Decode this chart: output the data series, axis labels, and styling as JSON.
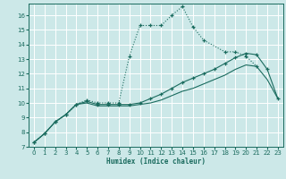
{
  "xlabel": "Humidex (Indice chaleur)",
  "bg_color": "#cce8e8",
  "grid_color": "#ffffff",
  "line_color": "#1a6b5e",
  "xlim": [
    -0.5,
    23.5
  ],
  "ylim": [
    7,
    16.8
  ],
  "xticks": [
    0,
    1,
    2,
    3,
    4,
    5,
    6,
    7,
    8,
    9,
    10,
    11,
    12,
    13,
    14,
    15,
    16,
    17,
    18,
    19,
    20,
    21,
    22,
    23
  ],
  "yticks": [
    7,
    8,
    9,
    10,
    11,
    12,
    13,
    14,
    15,
    16
  ],
  "curve1_x": [
    0,
    1,
    2,
    3,
    4,
    5,
    6,
    7,
    8,
    9,
    10,
    11,
    12,
    13,
    14,
    15,
    16,
    18,
    19,
    20,
    21
  ],
  "curve1_y": [
    7.3,
    7.9,
    8.7,
    9.2,
    9.9,
    10.2,
    10.0,
    10.0,
    10.0,
    13.2,
    15.3,
    15.3,
    15.3,
    16.0,
    16.6,
    15.2,
    14.3,
    13.5,
    13.5,
    13.2,
    12.5
  ],
  "curve2_x": [
    0,
    1,
    2,
    3,
    4,
    5,
    6,
    7,
    8,
    9,
    10,
    11,
    12,
    13,
    14,
    15,
    16,
    17,
    18,
    19,
    20,
    21,
    22,
    23
  ],
  "curve2_y": [
    7.3,
    7.9,
    8.7,
    9.2,
    9.9,
    10.1,
    9.9,
    9.9,
    9.9,
    9.9,
    10.0,
    10.3,
    10.6,
    11.0,
    11.4,
    11.7,
    12.0,
    12.3,
    12.7,
    13.1,
    13.4,
    13.3,
    12.3,
    10.3
  ],
  "curve3_x": [
    0,
    1,
    2,
    3,
    4,
    5,
    6,
    7,
    8,
    9,
    10,
    11,
    12,
    13,
    14,
    15,
    16,
    17,
    18,
    19,
    20,
    21,
    22,
    23
  ],
  "curve3_y": [
    7.3,
    7.9,
    8.7,
    9.2,
    9.9,
    10.0,
    9.8,
    9.8,
    9.8,
    9.8,
    9.9,
    10.0,
    10.2,
    10.5,
    10.8,
    11.0,
    11.3,
    11.6,
    11.9,
    12.3,
    12.6,
    12.5,
    11.6,
    10.3
  ]
}
